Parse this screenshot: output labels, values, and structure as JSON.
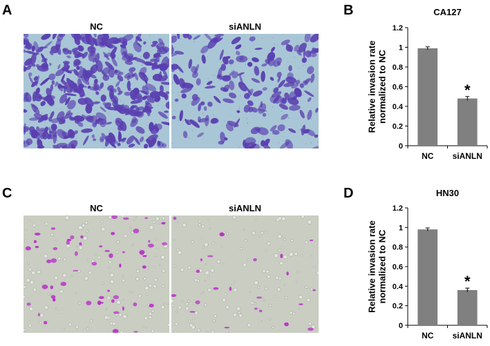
{
  "panels": {
    "A": {
      "letter": "A",
      "labels": [
        "NC",
        "siANLN"
      ]
    },
    "B": {
      "letter": "B"
    },
    "C": {
      "letter": "C",
      "labels": [
        "NC",
        "siANLN"
      ]
    },
    "D": {
      "letter": "D"
    }
  },
  "colors": {
    "crystal_violet": "#5a3fb0",
    "crystal_violet_bg": "#a9c6d6",
    "magenta_stain": "#b832c8",
    "phase_bg": "#c9cdc2",
    "bar_fill": "#808080"
  },
  "chart_data": [
    {
      "type": "bar",
      "title": "CA127",
      "ylabel": "Relative invasion rate\nnormalized to NC",
      "categories": [
        "NC",
        "siANLN"
      ],
      "values": [
        0.99,
        0.48
      ],
      "errors": [
        0.015,
        0.02
      ],
      "annotations": [
        "",
        "*"
      ],
      "ylim": [
        0,
        1.2
      ],
      "yticks": [
        "0",
        "0.2",
        "0.4",
        "0.6",
        "0.8",
        "1",
        "1.2"
      ],
      "grid": false
    },
    {
      "type": "bar",
      "title": "HN30",
      "ylabel": "Relative invasion rate\nnormalized to NC",
      "categories": [
        "NC",
        "siANLN"
      ],
      "values": [
        0.98,
        0.36
      ],
      "errors": [
        0.015,
        0.02
      ],
      "annotations": [
        "",
        "*"
      ],
      "ylim": [
        0,
        1.2
      ],
      "yticks": [
        "0",
        "0.2",
        "0.4",
        "0.6",
        "0.8",
        "1",
        "1.2"
      ],
      "grid": false
    }
  ]
}
